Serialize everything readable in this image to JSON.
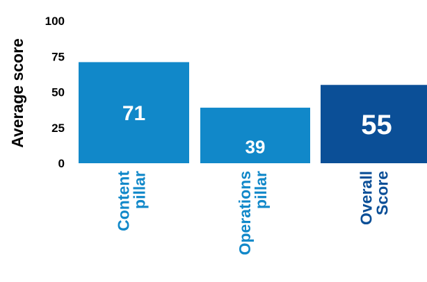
{
  "chart_data": {
    "type": "bar",
    "title": "",
    "xlabel": "",
    "ylabel": "Average score",
    "ylim": [
      0,
      100
    ],
    "yticks": [
      0,
      25,
      50,
      75,
      100
    ],
    "grid": false,
    "categories": [
      [
        "Content",
        "pillar"
      ],
      [
        "Operations",
        "pillar"
      ],
      [
        "Overall",
        "Score"
      ]
    ],
    "values": [
      71,
      39,
      55
    ],
    "data_labels": [
      "71",
      "39",
      "55"
    ],
    "colors": [
      "#1188c9",
      "#1188c9",
      "#0b4f97"
    ]
  }
}
